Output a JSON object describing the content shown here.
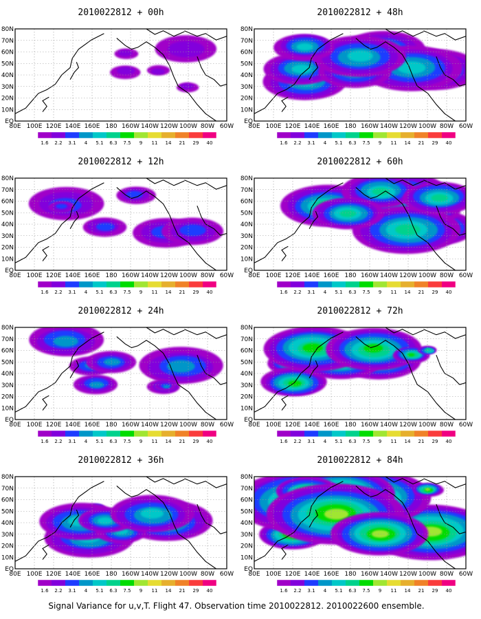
{
  "caption": "Signal Variance for u,v,T. Flight 47. Observation time 2010022812. 2010022600 ensemble.",
  "colors": [
    "#a000c8",
    "#8200dc",
    "#1e3cff",
    "#0096c8",
    "#00c8c8",
    "#00d28c",
    "#00dc00",
    "#a0e632",
    "#e6dc32",
    "#e6af2d",
    "#f08228",
    "#fa3c3c",
    "#f00082"
  ],
  "levels": [
    "1.6",
    "2.2",
    "3.1",
    "4",
    "5.1",
    "6.3",
    "7.5",
    "9",
    "11",
    "14",
    "21",
    "29",
    "40"
  ],
  "panels": [
    {
      "title": "2010022812 + 00h",
      "intensity": 0.15
    },
    {
      "title": "2010022812 + 48h",
      "intensity": 0.55
    },
    {
      "title": "2010022812 + 12h",
      "intensity": 0.28
    },
    {
      "title": "2010022812 + 60h",
      "intensity": 0.65
    },
    {
      "title": "2010022812 + 24h",
      "intensity": 0.38
    },
    {
      "title": "2010022812 + 72h",
      "intensity": 0.78
    },
    {
      "title": "2010022812 + 36h",
      "intensity": 0.45
    },
    {
      "title": "2010022812 + 84h",
      "intensity": 0.9
    }
  ],
  "chart_data": {
    "type": "heatmap",
    "x_ticks": [
      "80E",
      "100E",
      "120E",
      "140E",
      "160E",
      "180",
      "160W",
      "140W",
      "120W",
      "100W",
      "80W",
      "60W"
    ],
    "y_ticks": [
      "EQ",
      "10N",
      "20N",
      "30N",
      "40N",
      "50N",
      "60N",
      "70N",
      "80N"
    ],
    "xlim": [
      "80E",
      "60W"
    ],
    "ylim": [
      "EQ",
      "80N"
    ],
    "grid": true
  }
}
